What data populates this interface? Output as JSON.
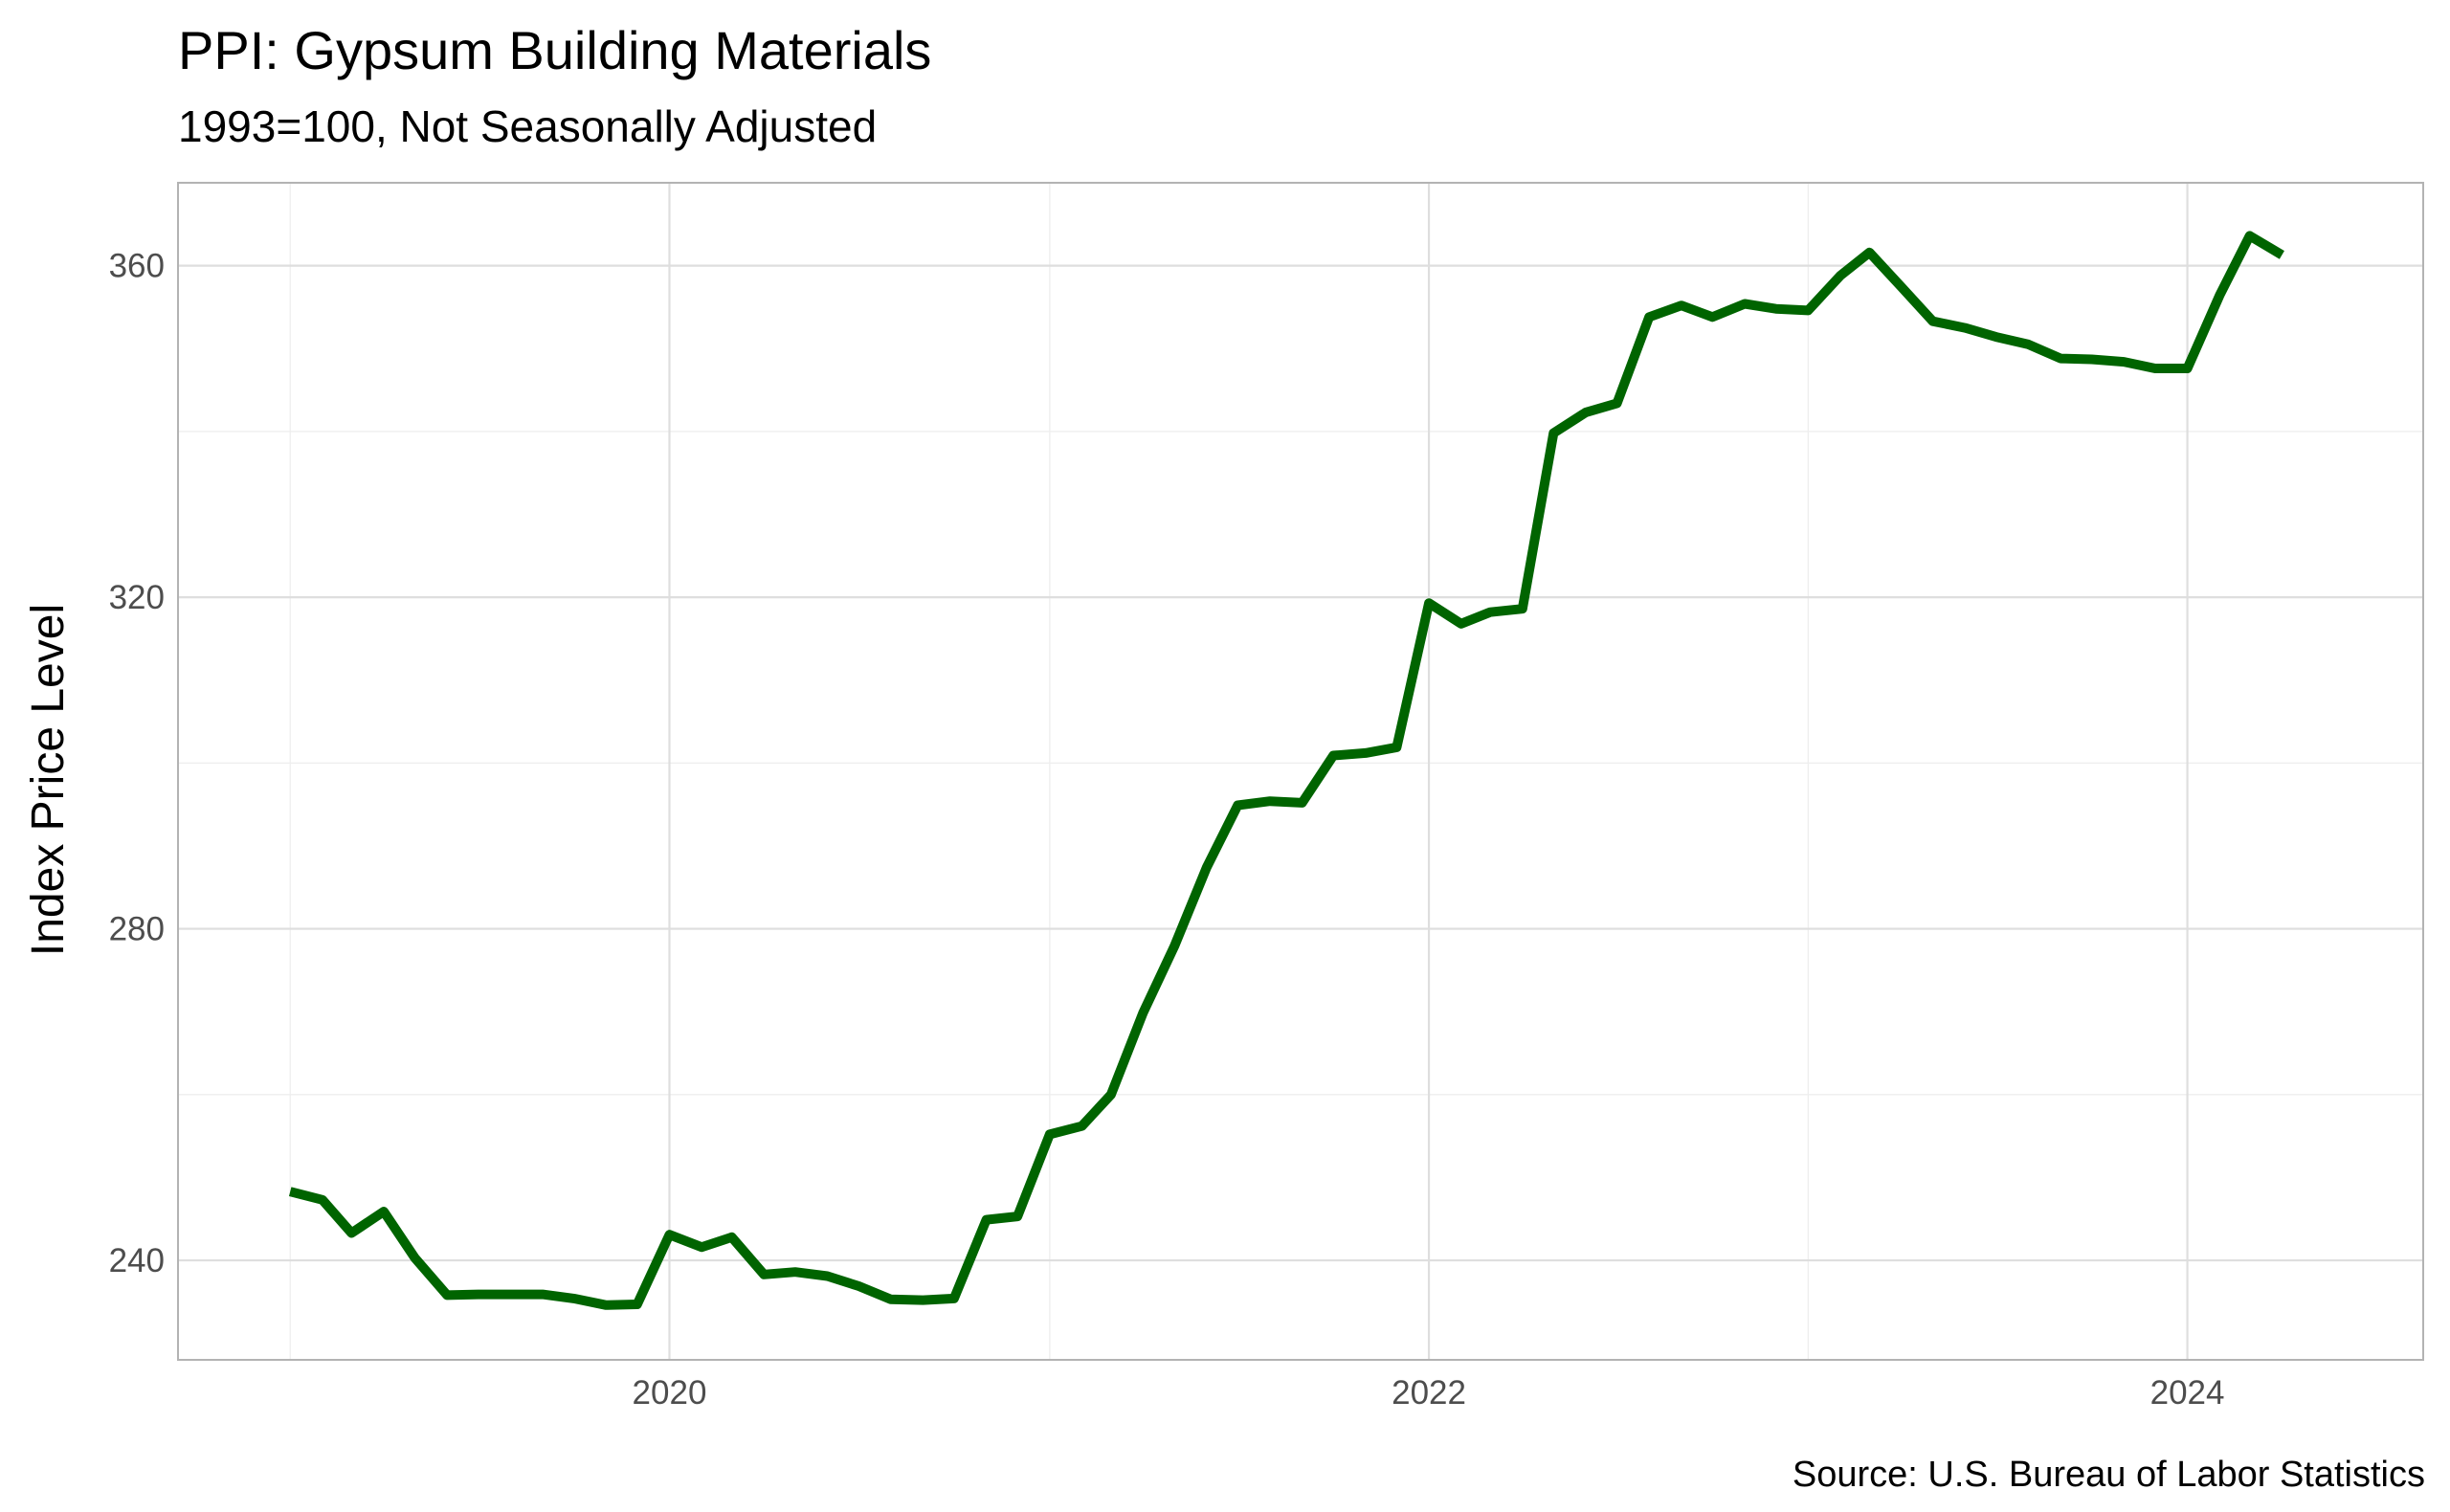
{
  "chart_data": {
    "type": "line",
    "title": "PPI: Gypsum Building Materials",
    "subtitle": "1993=100, Not Seasonally Adjusted",
    "caption": "Source: U.S. Bureau of Labor Statistics",
    "xlabel": "",
    "ylabel": "Index Price Level",
    "x_ticks": [
      "2020",
      "2022",
      "2024"
    ],
    "y_ticks": [
      240,
      280,
      320,
      360
    ],
    "ylim": [
      228,
      370
    ],
    "xlim": [
      "2018-09-15",
      "2024-08-15"
    ],
    "grid": true,
    "line_color": "#006400",
    "x": [
      "2019-01-01",
      "2019-02-01",
      "2019-03-01",
      "2019-04-01",
      "2019-05-01",
      "2019-06-01",
      "2019-07-01",
      "2019-08-01",
      "2019-09-01",
      "2019-10-01",
      "2019-11-01",
      "2019-12-01",
      "2020-01-01",
      "2020-02-01",
      "2020-03-01",
      "2020-04-01",
      "2020-05-01",
      "2020-06-01",
      "2020-07-01",
      "2020-08-01",
      "2020-09-01",
      "2020-10-01",
      "2020-11-01",
      "2020-12-01",
      "2021-01-01",
      "2021-02-01",
      "2021-03-01",
      "2021-04-01",
      "2021-05-01",
      "2021-06-01",
      "2021-07-01",
      "2021-08-01",
      "2021-09-01",
      "2021-10-01",
      "2021-11-01",
      "2021-12-01",
      "2022-01-01",
      "2022-02-01",
      "2022-03-01",
      "2022-04-01",
      "2022-05-01",
      "2022-06-01",
      "2022-07-01",
      "2022-08-01",
      "2022-09-01",
      "2022-10-01",
      "2022-11-01",
      "2022-12-01",
      "2023-01-01",
      "2023-02-01",
      "2023-03-01",
      "2023-04-01",
      "2023-05-01",
      "2023-06-01",
      "2023-07-01",
      "2023-08-01",
      "2023-09-01",
      "2023-10-01",
      "2023-11-01",
      "2023-12-01",
      "2024-01-01",
      "2024-02-01",
      "2024-03-01",
      "2024-04-01"
    ],
    "series": [
      {
        "values": [
          248.3,
          247.3,
          243.3,
          245.9,
          240.3,
          235.8,
          235.9,
          235.9,
          235.9,
          235.4,
          234.6,
          234.7,
          243.1,
          241.6,
          242.8,
          238.3,
          238.6,
          238.1,
          236.9,
          235.3,
          235.2,
          235.4,
          244.9,
          245.3,
          255.2,
          256.2,
          260.0,
          269.9,
          277.9,
          287.4,
          294.9,
          295.4,
          295.2,
          300.9,
          301.2,
          301.9,
          319.3,
          316.8,
          318.2,
          318.6,
          339.8,
          342.3,
          343.4,
          353.8,
          355.2,
          353.8,
          355.4,
          354.8,
          354.6,
          358.8,
          361.6,
          357.4,
          353.3,
          352.5,
          351.4,
          350.5,
          348.8,
          348.7,
          348.4,
          347.6,
          347.6,
          356.4,
          363.6,
          361.3
        ]
      }
    ]
  }
}
